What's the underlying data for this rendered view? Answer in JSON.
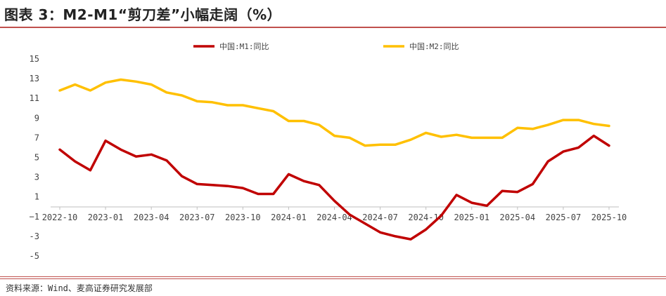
{
  "header": {
    "title": "图表 3：M2-M1“剪刀差”小幅走阔（%）"
  },
  "footer": {
    "source": "资料来源：Wind、麦高证券研究发展部"
  },
  "colors": {
    "accent_rule": "#c0504d",
    "m1": "#c00000",
    "m2": "#ffc000"
  },
  "chart_data": {
    "type": "line",
    "title": "图表 3：M2-M1“剪刀差”小幅走阔（%）",
    "xlabel": "",
    "ylabel": "",
    "ylim": [
      -5,
      15
    ],
    "yticks": [
      15,
      13,
      11,
      9,
      7,
      5,
      3,
      1,
      -1,
      -3,
      -5
    ],
    "ytick_labels": [
      "15",
      "13",
      "11",
      "9",
      "7",
      "5",
      "3",
      "1",
      "−1",
      "-3",
      "-5"
    ],
    "x": [
      "2022-10",
      "2022-11",
      "2022-12",
      "2023-01",
      "2023-02",
      "2023-03",
      "2023-04",
      "2023-05",
      "2023-06",
      "2023-07",
      "2023-08",
      "2023-09",
      "2023-10",
      "2023-11",
      "2023-12",
      "2024-01",
      "2024-02",
      "2024-03",
      "2024-04",
      "2024-05",
      "2024-06",
      "2024-07",
      "2024-08",
      "2024-09",
      "2024-10",
      "2024-11",
      "2024-12",
      "2025-01",
      "2025-02",
      "2025-03",
      "2025-04",
      "2025-05",
      "2025-06",
      "2025-07",
      "2025-08",
      "2025-09",
      "2025-10"
    ],
    "xtick_labels": [
      "2022-10",
      "2023-01",
      "2023-04",
      "2023-07",
      "2023-10",
      "2024-01",
      "2024-04",
      "2024-07",
      "2024-10",
      "2025-01",
      "2025-04",
      "2025-07",
      "2025-10"
    ],
    "legend_position": "top",
    "grid": false,
    "series": [
      {
        "name": "中国:M1:同比",
        "color": "#c00000",
        "values": [
          5.8,
          4.6,
          3.7,
          6.7,
          5.8,
          5.1,
          5.3,
          4.7,
          3.1,
          2.3,
          2.2,
          2.1,
          1.9,
          1.3,
          1.3,
          3.3,
          2.6,
          2.2,
          0.6,
          -0.8,
          -1.7,
          -2.6,
          -3.0,
          -3.3,
          -2.3,
          -0.9,
          1.2,
          0.4,
          0.1,
          1.6,
          1.5,
          2.3,
          4.6,
          5.6,
          6.0,
          7.2,
          6.2
        ]
      },
      {
        "name": "中国:M2:同比",
        "color": "#ffc000",
        "values": [
          11.8,
          12.4,
          11.8,
          12.6,
          12.9,
          12.7,
          12.4,
          11.6,
          11.3,
          10.7,
          10.6,
          10.3,
          10.3,
          10.0,
          9.7,
          8.7,
          8.7,
          8.3,
          7.2,
          7.0,
          6.2,
          6.3,
          6.3,
          6.8,
          7.5,
          7.1,
          7.3,
          7.0,
          7.0,
          7.0,
          8.0,
          7.9,
          8.3,
          8.8,
          8.8,
          8.4,
          8.2
        ]
      }
    ]
  }
}
